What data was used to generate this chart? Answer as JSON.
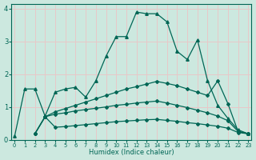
{
  "xlabel": "Humidex (Indice chaleur)",
  "bg_color": "#cce8df",
  "grid_color": "#e8c8c8",
  "line_color": "#006655",
  "line1_x": [
    0,
    1,
    2,
    3,
    4,
    5,
    6,
    7,
    8,
    9,
    10,
    11,
    12,
    13,
    14,
    15,
    16,
    17,
    18,
    19,
    20,
    21,
    22,
    23
  ],
  "line1_y": [
    0.1,
    1.55,
    1.55,
    0.72,
    1.45,
    1.55,
    1.6,
    1.3,
    1.8,
    2.55,
    3.15,
    3.15,
    3.9,
    3.85,
    3.85,
    3.6,
    2.7,
    2.45,
    3.05,
    1.8,
    1.05,
    0.65,
    0.3,
    0.18
  ],
  "line2_x": [
    2,
    3,
    4,
    5,
    6,
    7,
    8,
    9,
    10,
    11,
    12,
    13,
    14,
    15,
    16,
    17,
    18,
    19,
    20,
    21,
    22,
    23
  ],
  "line2_y": [
    0.18,
    0.7,
    0.85,
    0.95,
    1.05,
    1.15,
    1.25,
    1.35,
    1.45,
    1.55,
    1.62,
    1.7,
    1.78,
    1.72,
    1.65,
    1.55,
    1.45,
    1.35,
    1.8,
    1.1,
    0.25,
    0.18
  ],
  "line3_x": [
    2,
    3,
    4,
    5,
    6,
    7,
    8,
    9,
    10,
    11,
    12,
    13,
    14,
    15,
    16,
    17,
    18,
    19,
    20,
    21,
    22,
    23
  ],
  "line3_y": [
    0.18,
    0.7,
    0.78,
    0.82,
    0.88,
    0.92,
    0.96,
    1.0,
    1.05,
    1.08,
    1.12,
    1.15,
    1.18,
    1.12,
    1.05,
    0.98,
    0.9,
    0.82,
    0.72,
    0.58,
    0.25,
    0.18
  ],
  "line4_x": [
    2,
    3,
    4,
    5,
    6,
    7,
    8,
    9,
    10,
    11,
    12,
    13,
    14,
    15,
    16,
    17,
    18,
    19,
    20,
    21,
    22,
    23
  ],
  "line4_y": [
    0.18,
    0.7,
    0.38,
    0.4,
    0.43,
    0.46,
    0.49,
    0.52,
    0.55,
    0.57,
    0.59,
    0.61,
    0.62,
    0.59,
    0.56,
    0.52,
    0.49,
    0.45,
    0.41,
    0.35,
    0.22,
    0.18
  ],
  "xlim": [
    -0.3,
    23.3
  ],
  "ylim": [
    0,
    4.15
  ],
  "yticks": [
    0,
    1,
    2,
    3,
    4
  ],
  "xticks": [
    0,
    1,
    2,
    3,
    4,
    5,
    6,
    7,
    8,
    9,
    10,
    11,
    12,
    13,
    14,
    15,
    16,
    17,
    18,
    19,
    20,
    21,
    22,
    23
  ]
}
